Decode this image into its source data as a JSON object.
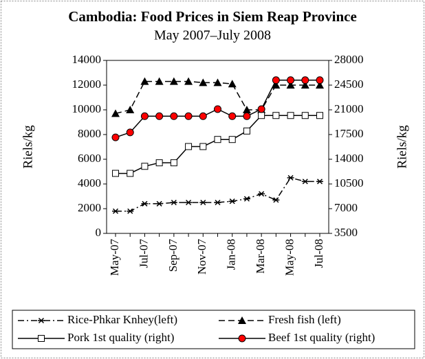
{
  "chart_data": {
    "type": "line",
    "title": "Cambodia: Food Prices in Siem Reap Province",
    "subtitle": "May 2007–July 2008",
    "y_label": "Riels/kg",
    "y2_label": "Riels/kg",
    "categories": [
      "May-07",
      null,
      "Jul-07",
      null,
      "Sep-07",
      null,
      "Nov-07",
      null,
      "Jan-08",
      null,
      "Mar-08",
      null,
      "May-08",
      null,
      "Jul-08"
    ],
    "ylim": [
      0,
      14000
    ],
    "yticks": [
      0,
      2000,
      4000,
      6000,
      8000,
      10000,
      12000,
      14000
    ],
    "y2lim": [
      3500,
      28000
    ],
    "y2ticks": [
      3500,
      7000,
      10500,
      14000,
      17500,
      21000,
      24500,
      28000
    ],
    "series": [
      {
        "name": "Rice-Phkar Knhey(left)",
        "color": "#000000",
        "marker": "star",
        "dash": "dashdot",
        "values": [
          1800,
          1800,
          2400,
          2400,
          2500,
          2500,
          2500,
          2500,
          2600,
          2800,
          3200,
          2700,
          4500,
          4200,
          4200
        ]
      },
      {
        "name": "Fresh fish (left)",
        "color": "#000000",
        "marker": "triangle",
        "dash": "dashed",
        "values": [
          9700,
          10000,
          12300,
          12300,
          12300,
          12300,
          12200,
          12200,
          12100,
          10000,
          10000,
          12000,
          12000,
          12000,
          12000
        ]
      },
      {
        "name": "Pork 1st quality (right)",
        "color": "#000000",
        "marker": "square",
        "dash": "solid",
        "axis": "y2",
        "values": [
          12000,
          12000,
          13000,
          13500,
          13500,
          15800,
          15800,
          16800,
          16800,
          18000,
          20200,
          20200,
          20200,
          20200,
          20200
        ]
      },
      {
        "name": "Beef 1st quality (right)",
        "color": "#000000",
        "marker_color": "#ff0000",
        "marker": "circle",
        "dash": "solid",
        "axis": "y2",
        "values": [
          17100,
          17800,
          20100,
          20100,
          20100,
          20100,
          20100,
          21100,
          20100,
          20100,
          21100,
          25200,
          25200,
          25200,
          25200
        ]
      }
    ]
  }
}
